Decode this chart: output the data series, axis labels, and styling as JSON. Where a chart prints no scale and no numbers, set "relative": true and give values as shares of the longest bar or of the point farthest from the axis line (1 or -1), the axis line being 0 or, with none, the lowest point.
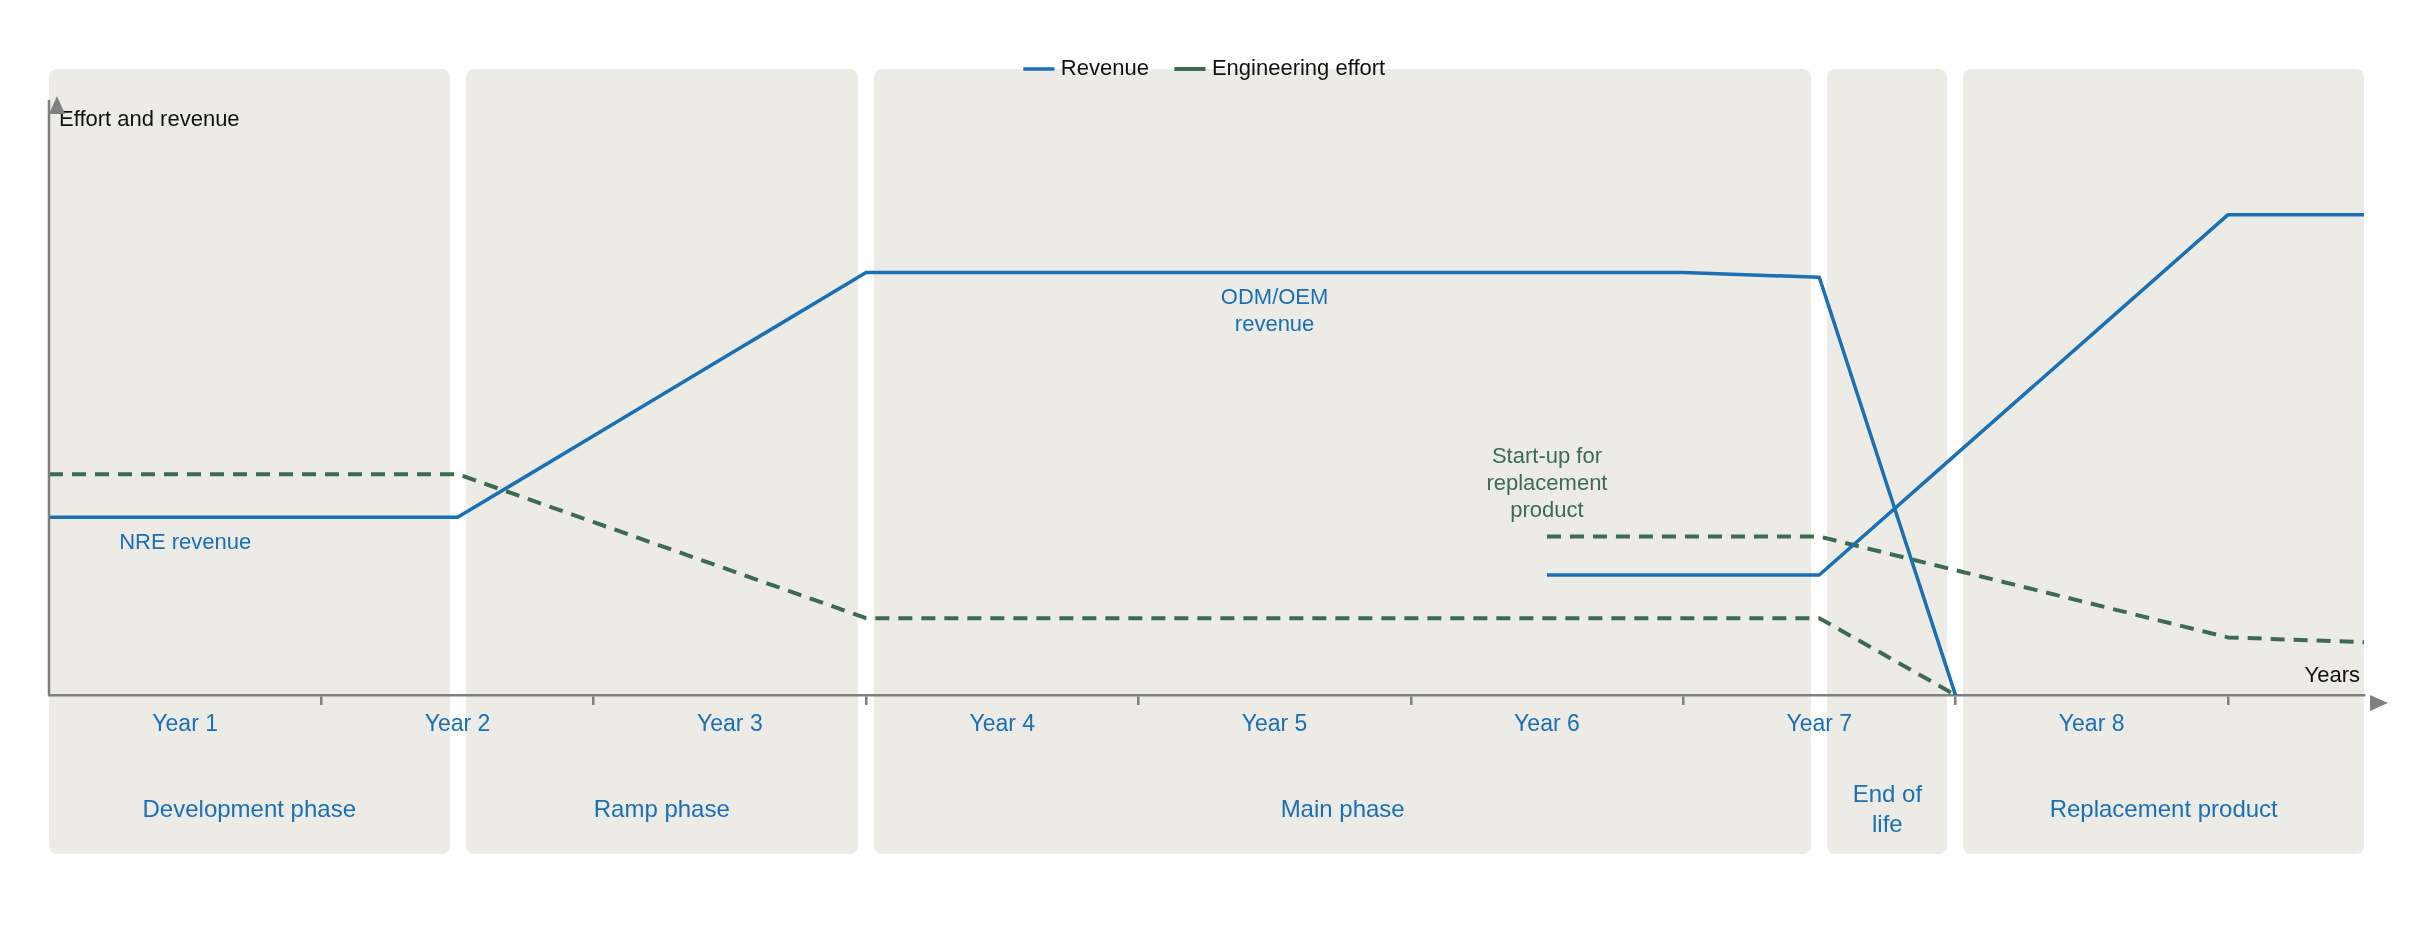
{
  "chart_data": {
    "type": "line",
    "relative": true,
    "xlabel": "Years",
    "ylabel": "Effort and revenue",
    "categories": [
      null,
      "Year 1",
      null,
      "Year 2",
      null,
      "Year 3",
      null,
      "Year 4",
      null,
      "Year 5",
      null,
      "Year 6",
      null,
      "Year 7",
      null,
      "Year 8",
      null,
      null
    ],
    "series": [
      {
        "name": "Revenue",
        "color": "#1a6fb5",
        "line_style": "solid",
        "values": [
          0.37,
          0.37,
          0.37,
          0.37,
          0.54,
          0.71,
          0.88,
          0.88,
          0.88,
          0.88,
          0.88,
          0.88,
          0.88,
          0.87,
          0,
          null,
          null,
          null
        ]
      },
      {
        "name": "Engineering effort",
        "color": "#3d6b4f",
        "line_style": "dashed",
        "values": [
          0.46,
          0.46,
          0.46,
          0.46,
          0.36,
          0.26,
          0.16,
          0.16,
          0.16,
          0.16,
          0.16,
          0.16,
          0.16,
          0.16,
          0,
          null,
          null,
          null
        ]
      },
      {
        "color": "#1a6fb5",
        "line_style": "solid",
        "values": [
          null,
          null,
          null,
          null,
          null,
          null,
          null,
          null,
          null,
          null,
          null,
          0.25,
          0.25,
          0.25,
          0.5,
          0.75,
          1,
          1
        ]
      },
      {
        "color": "#3d6b4f",
        "line_style": "dashed",
        "values": [
          null,
          null,
          null,
          null,
          null,
          null,
          null,
          null,
          null,
          null,
          null,
          0.33,
          0.33,
          0.33,
          0.26,
          0.19,
          0.12,
          0.11
        ]
      }
    ],
    "annotations": [
      "Development phase",
      "Ramp phase",
      "Main phase",
      "End of life",
      "Replacement product",
      {
        "text": "NRE revenue",
        "x": "Year 1",
        "y": 0.37
      },
      {
        "text": "ODM/OEM revenue",
        "x": "Year 5",
        "y": 0.88
      },
      {
        "text": "Start-up for replacement product",
        "x": "Year 6",
        "y": 0.33
      }
    ],
    "legend": "top",
    "marker": "none",
    "grid": false
  }
}
